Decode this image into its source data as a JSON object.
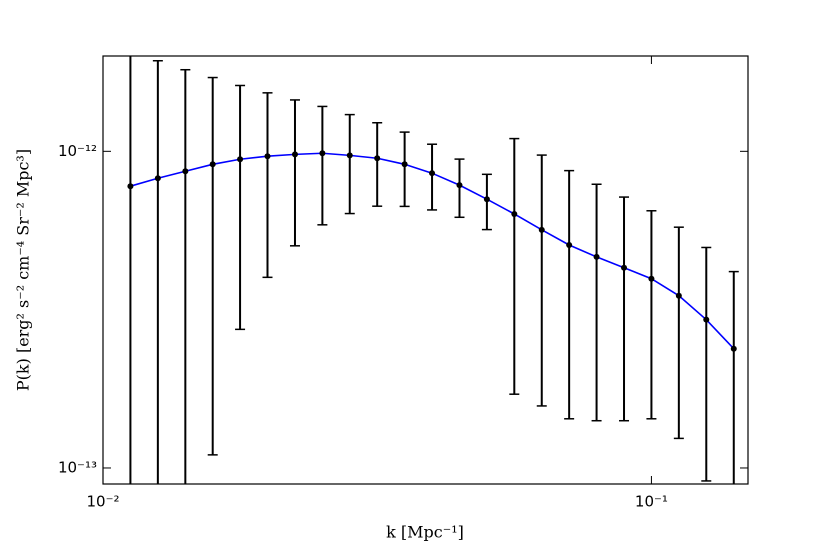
{
  "chart_data": {
    "type": "errorbar",
    "xlabel": "k [Mpc⁻¹]",
    "ylabel": "P(k) [erg² s⁻² cm⁻⁴ Sr⁻² Mpc³]",
    "xscale": "log",
    "yscale": "log",
    "xlim": [
      0.01,
      0.15
    ],
    "ylim": [
      8.9e-14,
      2e-12
    ],
    "xticks": [
      {
        "value": 0.01,
        "label": "10⁻²"
      },
      {
        "value": 0.1,
        "label": "10⁻¹"
      }
    ],
    "yticks": [
      {
        "value": 1e-13,
        "label": "10⁻¹³"
      },
      {
        "value": 1e-12,
        "label": "10⁻¹²"
      }
    ],
    "grid": false,
    "series": [
      {
        "color": "#0000ff",
        "marker_color": "#000000",
        "error_color": "#000000",
        "x": [
          0.01122,
          0.01259,
          0.01413,
          0.01585,
          0.01778,
          0.01995,
          0.02239,
          0.02512,
          0.02818,
          0.03162,
          0.03548,
          0.03981,
          0.04467,
          0.05012,
          0.05623,
          0.0631,
          0.07079,
          0.07943,
          0.08913,
          0.1,
          0.1122,
          0.1259,
          0.1413
        ],
        "values": [
          7.76e-13,
          8.22e-13,
          8.65e-13,
          9.1e-13,
          9.44e-13,
          9.65e-13,
          9.78e-13,
          9.86e-13,
          9.71e-13,
          9.51e-13,
          9.1e-13,
          8.53e-13,
          7.82e-13,
          7.06e-13,
          6.34e-13,
          5.65e-13,
          5.06e-13,
          4.64e-13,
          4.29e-13,
          3.96e-13,
          3.5e-13,
          2.94e-13,
          2.38e-13
        ],
        "errors": [
          1.3e-12,
          1.11e-12,
          9.45e-13,
          8e-13,
          6.7e-13,
          5.65e-13,
          4.75e-13,
          4e-13,
          3.35e-13,
          2.8e-13,
          2.4e-13,
          2e-13,
          1.63e-13,
          1.4e-13,
          4.63e-13,
          4.08e-13,
          3.63e-13,
          3.23e-13,
          2.88e-13,
          2.53e-13,
          2.26e-13,
          2.03e-13,
          1.79e-13
        ]
      }
    ]
  }
}
